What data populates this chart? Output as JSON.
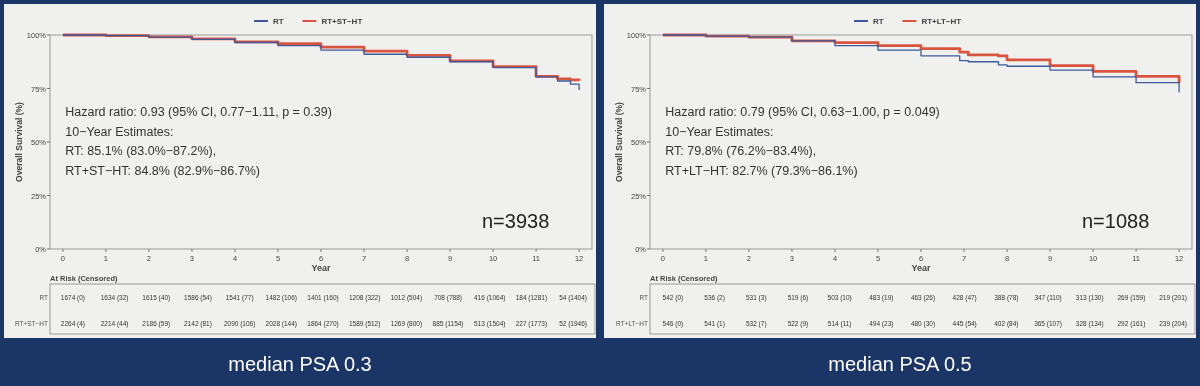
{
  "chart_data": [
    {
      "type": "step",
      "title": "median PSA 0.3",
      "xlabel": "Year",
      "ylabel": "Overall Survival (%)",
      "legend": "top",
      "x": [
        0,
        1,
        2,
        3,
        4,
        5,
        6,
        7,
        8,
        9,
        10,
        11,
        11.5,
        11.8,
        12
      ],
      "series": [
        {
          "name": "RT",
          "color": "#3d5a9e",
          "values": [
            100,
            99.7,
            99,
            98,
            96.5,
            95,
            92.9,
            91,
            89.6,
            87.5,
            84.8,
            80.4,
            78.5,
            77,
            74.3
          ]
        },
        {
          "name": "RT+ST−HT",
          "color": "#d9543f",
          "values": [
            100,
            99.7,
            99.1,
            98.2,
            96.8,
            95.9,
            94.3,
            92.5,
            90.5,
            87.9,
            85.2,
            80.7,
            79.5,
            79,
            78.6
          ]
        }
      ],
      "xlim": [
        -0.3,
        12.3
      ],
      "ylim": [
        0,
        100
      ],
      "xticks": [
        0,
        1,
        2,
        3,
        4,
        5,
        6,
        7,
        8,
        9,
        10,
        11,
        12
      ],
      "yticks": [
        {
          "value": 0,
          "label": "0%"
        },
        {
          "value": 25,
          "label": "25%"
        },
        {
          "value": 50,
          "label": "50%"
        },
        {
          "value": 75,
          "label": "75%"
        },
        {
          "value": 100,
          "label": "100%"
        }
      ],
      "annotations": [
        "Hazard ratio: 0.93 (95% CI, 0.77−1.11, p = 0.39)",
        "10−Year Estimates:",
        "RT: 85.1% (83.0%−87.2%),",
        "RT+ST−HT: 84.8% (82.9%−86.7%)",
        "n=3938",
        "At Risk (Censored)",
        "RT",
        "1674 (0)",
        "1634 (32)",
        "1615 (40)",
        "1586 (54)",
        "1541 (77)",
        "1482 (106)",
        "1401 (160)",
        "1208 (322)",
        "1012 (504)",
        "708 (788)",
        "416 (1064)",
        "184 (1281)",
        "54 (1404)",
        "RT+ST−HT",
        "2264 (4)",
        "2214 (44)",
        "2186 (59)",
        "2142 (81)",
        "2090 (106)",
        "2028 (144)",
        "1864 (270)",
        "1589 (512)",
        "1269 (800)",
        "885 (1154)",
        "513 (1504)",
        "227 (1773)",
        "52 (1946)"
      ]
    },
    {
      "type": "step",
      "title": "median PSA 0.5",
      "xlabel": "Year",
      "ylabel": "Overall Survival (%)",
      "legend": "top",
      "x": [
        0,
        1,
        2,
        3,
        4,
        5,
        6,
        6.9,
        7.1,
        7.8,
        8,
        9,
        10,
        11,
        12
      ],
      "series": [
        {
          "name": "RT",
          "color": "#3d5a9e",
          "values": [
            100,
            99.5,
            99,
            97.3,
            95,
            92.9,
            90.2,
            88,
            87.5,
            86,
            85.4,
            83.6,
            80.4,
            77.7,
            73.2
          ]
        },
        {
          "name": "RT+LT−HT",
          "color": "#d9543f",
          "values": [
            100,
            99.5,
            99,
            97.3,
            96.4,
            95,
            93.6,
            92,
            90.7,
            90.2,
            88.4,
            85.7,
            83,
            80.7,
            77.7
          ]
        }
      ],
      "xlim": [
        -0.3,
        12.3
      ],
      "ylim": [
        0,
        100
      ],
      "xticks": [
        0,
        1,
        2,
        3,
        4,
        5,
        6,
        7,
        8,
        9,
        10,
        11,
        12
      ],
      "yticks": [
        {
          "value": 0,
          "label": "0%"
        },
        {
          "value": 25,
          "label": "25%"
        },
        {
          "value": 50,
          "label": "50%"
        },
        {
          "value": 75,
          "label": "75%"
        },
        {
          "value": 100,
          "label": "100%"
        }
      ],
      "annotations": [
        "Hazard ratio: 0.79 (95% CI, 0.63−1.00, p = 0.049)",
        "10−Year Estimates:",
        "RT: 79.8% (76.2%−83.4%),",
        "RT+LT−HT: 82.7% (79.3%−86.1%)",
        "n=1088",
        "At Risk (Censored)",
        "RT",
        "542 (0)",
        "536 (2)",
        "531 (3)",
        "519 (6)",
        "503 (10)",
        "483 (19)",
        "463 (26)",
        "428 (47)",
        "388 (78)",
        "347 (110)",
        "313 (130)",
        "269 (159)",
        "219 (201)",
        "RT+LT−HT",
        "546 (0)",
        "541 (1)",
        "532 (7)",
        "522 (9)",
        "514 (11)",
        "494 (23)",
        "480 (30)",
        "445 (54)",
        "402 (84)",
        "365 (107)",
        "328 (134)",
        "292 (161)",
        "239 (204)"
      ]
    }
  ]
}
